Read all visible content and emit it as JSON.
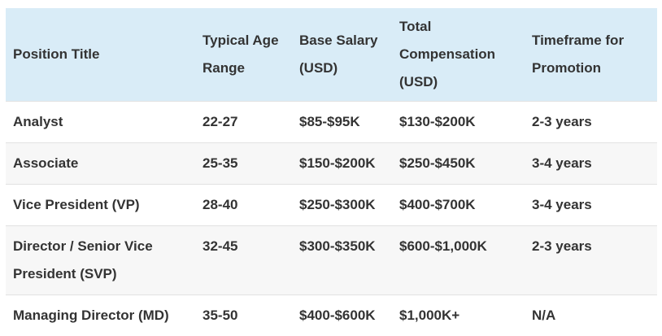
{
  "table": {
    "headers": [
      "Position Title",
      "Typical Age Range",
      "Base Salary (USD)",
      "Total Compensation (USD)",
      "Timeframe for Promotion"
    ],
    "rows": [
      [
        "Analyst",
        "22-27",
        "$85-$95K",
        "$130-$200K",
        "2-3 years"
      ],
      [
        "Associate",
        "25-35",
        "$150-$200K",
        "$250-$450K",
        "3-4 years"
      ],
      [
        "Vice President (VP)",
        "28-40",
        "$250-$300K",
        "$400-$700K",
        "3-4 years"
      ],
      [
        "Director / Senior Vice President (SVP)",
        "32-45",
        "$300-$350K",
        "$600-$1,000K",
        "2-3 years"
      ],
      [
        "Managing Director (MD)",
        "35-50",
        "$400-$600K",
        "$1,000K+",
        "N/A"
      ]
    ]
  },
  "colors": {
    "header_bg": "#d9ecf7",
    "row_alt_bg": "#f7f7f7",
    "text": "#333333"
  }
}
